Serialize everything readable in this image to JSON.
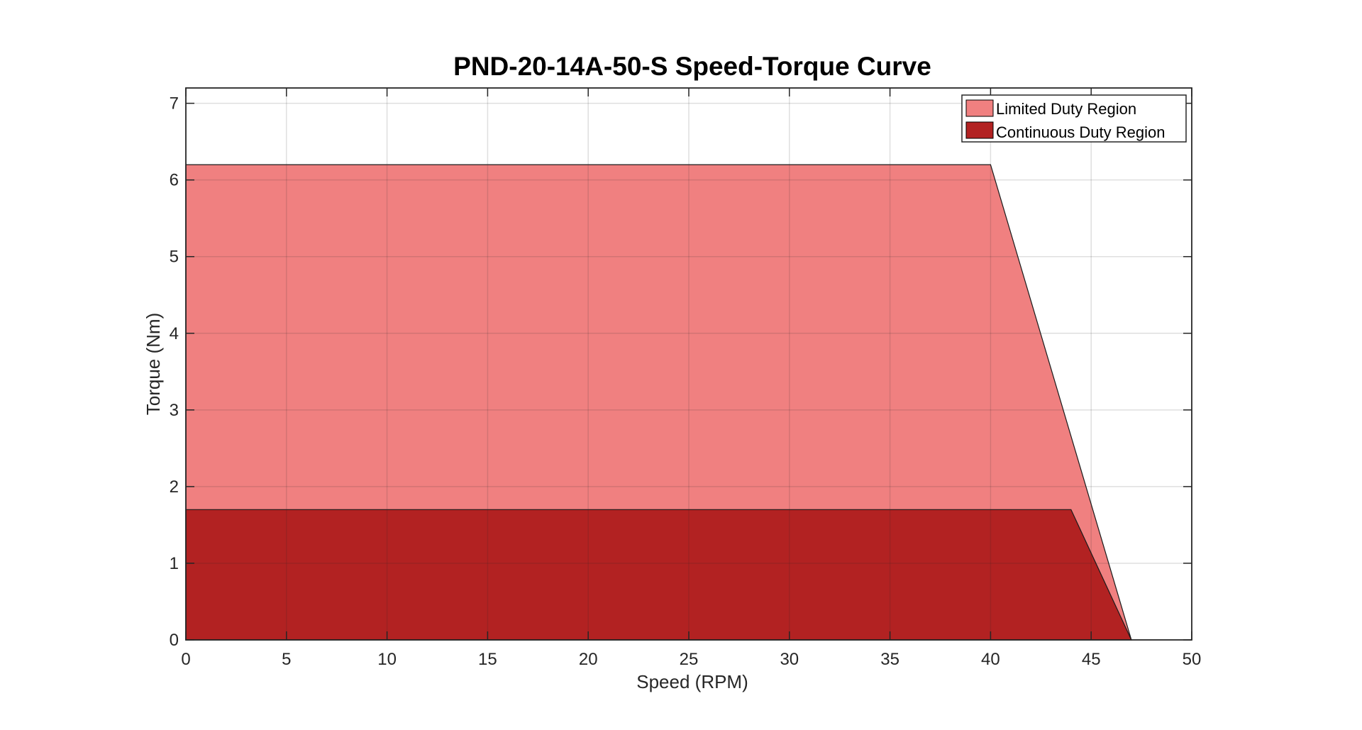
{
  "chart_data": {
    "type": "area",
    "title": "PND-20-14A-50-S Speed-Torque Curve",
    "xlabel": "Speed (RPM)",
    "ylabel": "Torque (Nm)",
    "xlim": [
      0,
      50
    ],
    "ylim": [
      0,
      7.2
    ],
    "xticks": [
      0,
      5,
      10,
      15,
      20,
      25,
      30,
      35,
      40,
      45,
      50
    ],
    "yticks": [
      0,
      1,
      2,
      3,
      4,
      5,
      6,
      7
    ],
    "grid": true,
    "legend_position": "top-right",
    "series": [
      {
        "name": "Limited Duty Region",
        "color": "#f08080",
        "points": [
          [
            0,
            0
          ],
          [
            0,
            6.2
          ],
          [
            40,
            6.2
          ],
          [
            47,
            0
          ]
        ]
      },
      {
        "name": "Continuous Duty Region",
        "color": "#b22222",
        "points": [
          [
            0,
            0
          ],
          [
            0,
            1.7
          ],
          [
            44,
            1.7
          ],
          [
            47,
            0
          ]
        ]
      }
    ]
  }
}
